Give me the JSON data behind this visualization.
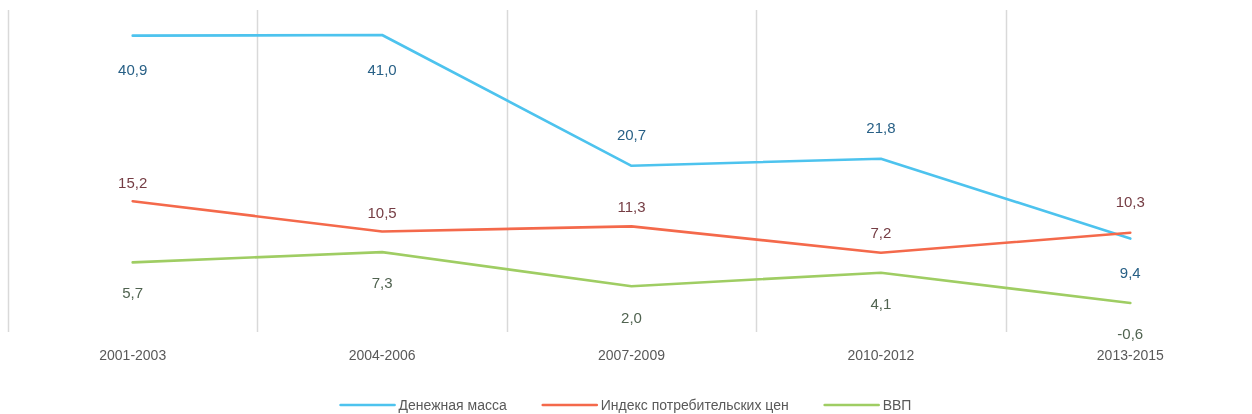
{
  "chart_data": {
    "type": "line",
    "categories": [
      "2001-2003",
      "2004-2006",
      "2007-2009",
      "2010-2012",
      "2013-2015"
    ],
    "series": [
      {
        "name": "Денежная масса",
        "color": "#4dc3ee",
        "values": [
          40.9,
          41.0,
          20.7,
          21.8,
          9.4
        ],
        "value_labels": [
          "40,9",
          "41,0",
          "20,7",
          "21,8",
          "9,4"
        ]
      },
      {
        "name": "Индекс потребительских цен",
        "color": "#f4694b",
        "values": [
          15.2,
          10.5,
          11.3,
          7.2,
          10.3
        ],
        "value_labels": [
          "15,2",
          "10,5",
          "11,3",
          "7,2",
          "10,3"
        ]
      },
      {
        "name": "ВВП",
        "color": "#9fcd63",
        "values": [
          5.7,
          7.3,
          2.0,
          4.1,
          -0.6
        ],
        "value_labels": [
          "5,7",
          "7,3",
          "2,0",
          "4,1",
          "-0,6"
        ]
      }
    ],
    "grid": "x",
    "legend": "bottom",
    "marker": "none",
    "line_style": "solid"
  }
}
